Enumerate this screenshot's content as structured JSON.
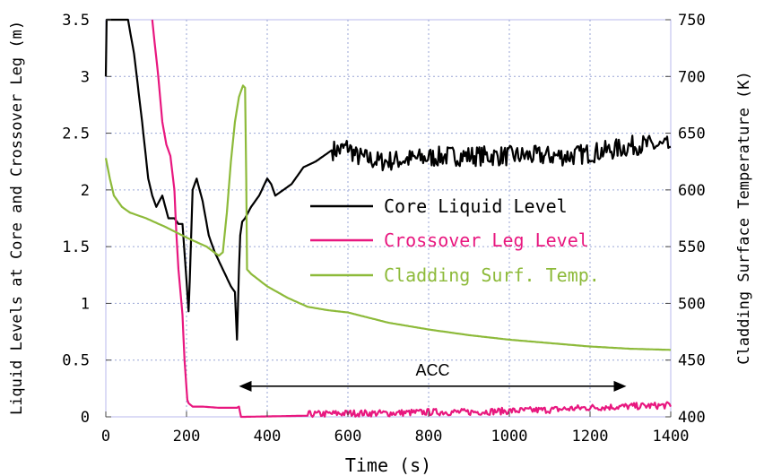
{
  "chart_data": {
    "type": "line",
    "xlabel": "Time (s)",
    "ylabel_left": "Liquid Levels at Core and Crossover Leg (m)",
    "ylabel_right": "Cladding Surface Temperature (K)",
    "xlim": [
      0,
      1400
    ],
    "ylim_left": [
      0,
      3.5
    ],
    "ylim_right": [
      400,
      750
    ],
    "x_ticks": [
      "0",
      "200",
      "400",
      "600",
      "800",
      "1000",
      "1200",
      "1400"
    ],
    "y_left_ticks": [
      "0",
      "0.5",
      "1",
      "1.5",
      "2",
      "2.5",
      "3",
      "3.5"
    ],
    "y_right_ticks": [
      "400",
      "450",
      "500",
      "550",
      "600",
      "650",
      "700",
      "750"
    ],
    "grid": true,
    "legend_placement": "center-right",
    "annotation": {
      "text": "ACC",
      "x_start": 330,
      "x_end": 1290,
      "y": 0.27
    },
    "series": [
      {
        "name": "Core Liquid Level",
        "axis": "left",
        "color": "#000000",
        "x": [
          0,
          2,
          5,
          30,
          55,
          70,
          90,
          105,
          115,
          125,
          140,
          155,
          170,
          180,
          190,
          200,
          205,
          208,
          215,
          225,
          240,
          255,
          270,
          290,
          310,
          320,
          325,
          330,
          333,
          338,
          345,
          360,
          380,
          400,
          410,
          420,
          440,
          460,
          490,
          520,
          560,
          580,
          600,
          620,
          640,
          680,
          750,
          850,
          950,
          1050,
          1150,
          1250,
          1320,
          1400
        ],
        "y": [
          3.0,
          3.5,
          3.5,
          3.5,
          3.5,
          3.2,
          2.6,
          2.1,
          1.95,
          1.85,
          1.95,
          1.75,
          1.75,
          1.7,
          1.7,
          1.2,
          0.93,
          1.2,
          2.0,
          2.1,
          1.9,
          1.6,
          1.45,
          1.3,
          1.15,
          1.1,
          0.68,
          1.3,
          1.6,
          1.72,
          1.75,
          1.85,
          1.95,
          2.1,
          2.05,
          1.95,
          2.0,
          2.05,
          2.2,
          2.25,
          2.35,
          2.35,
          2.38,
          2.3,
          2.28,
          2.25,
          2.27,
          2.3,
          2.3,
          2.3,
          2.3,
          2.35,
          2.4,
          2.38
        ]
      },
      {
        "name": "Crossover Leg Level",
        "axis": "left",
        "color": "#e8177f",
        "x": [
          115,
          130,
          140,
          150,
          160,
          170,
          175,
          180,
          190,
          195,
          200,
          202,
          205,
          215,
          240,
          280,
          325,
          330,
          335,
          340,
          500,
          600,
          700,
          800,
          900,
          1000,
          1100,
          1200,
          1300,
          1400
        ],
        "y": [
          3.5,
          3.0,
          2.6,
          2.4,
          2.3,
          2.0,
          1.6,
          1.3,
          0.9,
          0.5,
          0.25,
          0.15,
          0.12,
          0.09,
          0.09,
          0.08,
          0.08,
          0.09,
          0.0,
          0.0,
          0.01,
          0.02,
          0.02,
          0.03,
          0.03,
          0.04,
          0.05,
          0.07,
          0.08,
          0.09
        ]
      },
      {
        "name": "Cladding Surf. Temp.",
        "axis": "right",
        "color": "#8dba3a",
        "x": [
          0,
          10,
          20,
          40,
          60,
          100,
          150,
          200,
          250,
          280,
          290,
          300,
          310,
          320,
          330,
          340,
          345,
          348,
          350,
          355,
          360,
          400,
          450,
          500,
          550,
          600,
          700,
          800,
          900,
          1000,
          1100,
          1200,
          1300,
          1400
        ],
        "y": [
          628,
          610,
          595,
          585,
          580,
          575,
          567,
          558,
          550,
          542,
          545,
          580,
          625,
          660,
          682,
          692,
          690,
          610,
          530,
          528,
          526,
          515,
          505,
          497,
          494,
          492,
          483,
          477,
          472,
          468,
          465,
          462,
          460,
          459
        ]
      }
    ]
  }
}
